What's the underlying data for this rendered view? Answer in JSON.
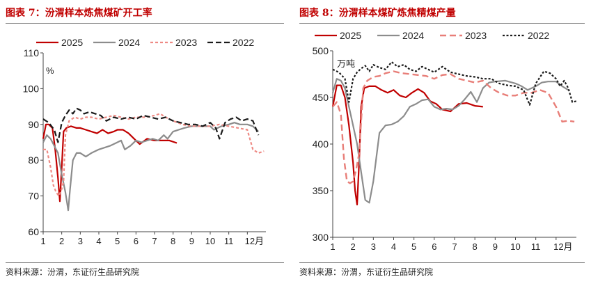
{
  "left": {
    "title": "图表 7：汾渭样本炼焦煤矿开工率",
    "source": "资料来源：汾渭，东证衍生品研究院"
  },
  "right": {
    "title": "图表 8：汾渭样本煤矿炼焦精煤产量",
    "source": "资料来源：汾渭，东证衍生品研究院"
  },
  "chart_data": [
    {
      "type": "line",
      "unit": "%",
      "ylim": [
        60,
        110
      ],
      "yticks": [
        60,
        70,
        80,
        90,
        100,
        110
      ],
      "xlim": [
        1,
        13
      ],
      "xticks": [
        "1",
        "2",
        "3",
        "4",
        "5",
        "6",
        "7",
        "8",
        "9",
        "10",
        "11",
        "12月"
      ],
      "legend_position": "top",
      "series": [
        {
          "name": "2025",
          "color": "#c00000",
          "dash": "solid",
          "width": 2.2,
          "x": [
            1.0,
            1.15,
            1.3,
            1.5,
            1.65,
            1.8,
            1.9,
            2.0,
            2.1,
            2.25,
            2.5,
            2.8,
            3.0,
            3.3,
            3.6,
            3.9,
            4.2,
            4.5,
            4.8,
            5.0,
            5.3,
            5.6,
            5.9,
            6.2,
            6.6,
            7.0,
            7.4,
            7.8,
            8.2
          ],
          "y": [
            86,
            90,
            90,
            89,
            83,
            75,
            68.5,
            78,
            88,
            89,
            89.5,
            89,
            89,
            88.5,
            88,
            87.5,
            88.5,
            87.5,
            88,
            88.5,
            88.5,
            87.5,
            86,
            84.5,
            86,
            85.5,
            85.5,
            85.5,
            84.8
          ]
        },
        {
          "name": "2024",
          "color": "#8c8c8c",
          "dash": "solid",
          "width": 2.2,
          "x": [
            1.0,
            1.2,
            1.4,
            1.6,
            1.8,
            2.0,
            2.2,
            2.35,
            2.45,
            2.6,
            2.8,
            3.0,
            3.3,
            3.6,
            4.0,
            4.3,
            4.6,
            5.0,
            5.2,
            5.4,
            5.7,
            6.0,
            6.3,
            6.6,
            6.9,
            7.2,
            7.5,
            7.7,
            8.0,
            8.3,
            8.6,
            9.0,
            9.5,
            10.0,
            10.2,
            10.6,
            11.0,
            11.3,
            11.6,
            12.0,
            12.3,
            12.6
          ],
          "y": [
            85,
            87,
            86,
            84,
            82,
            76,
            71,
            66,
            72,
            80,
            82,
            82,
            81,
            82,
            83,
            83.5,
            84,
            85,
            85.5,
            83,
            84,
            85.5,
            85,
            85.5,
            86,
            85.5,
            87,
            86,
            88,
            88.5,
            89,
            89.5,
            89.5,
            89.5,
            88.5,
            89.5,
            90,
            90.5,
            90,
            90,
            89.5,
            88
          ]
        },
        {
          "name": "2023",
          "color": "#ee8a84",
          "dash": "4,3",
          "width": 2.2,
          "x": [
            1.0,
            1.2,
            1.4,
            1.55,
            1.7,
            1.85,
            2.0,
            2.1,
            2.2,
            2.4,
            2.7,
            3.0,
            3.3,
            3.6,
            4.0,
            4.4,
            4.8,
            5.2,
            5.6,
            6.0,
            6.5,
            7.0,
            7.3,
            7.6,
            8.0,
            8.5,
            9.0,
            9.5,
            10.0,
            10.5,
            11.0,
            11.5,
            12.0,
            12.3,
            12.6,
            12.9
          ],
          "y": [
            83,
            83,
            78,
            73,
            71,
            70,
            72,
            74,
            87,
            91,
            92,
            91.5,
            92,
            92,
            91.5,
            92,
            92.5,
            92,
            91.5,
            92,
            92,
            92.5,
            93,
            92,
            91,
            90,
            89.5,
            89.5,
            89.5,
            90,
            89.5,
            89,
            88.5,
            83,
            82,
            82.5
          ]
        },
        {
          "name": "2022",
          "color": "#1a1a1a",
          "dash": "8,4",
          "width": 2.2,
          "x": [
            1.0,
            1.3,
            1.6,
            1.8,
            2.0,
            2.2,
            2.4,
            2.6,
            2.8,
            3.0,
            3.2,
            3.5,
            3.8,
            4.1,
            4.4,
            4.8,
            5.2,
            5.6,
            6.0,
            6.4,
            6.8,
            7.2,
            7.6,
            8.0,
            8.4,
            8.8,
            9.2,
            9.6,
            10.0,
            10.3,
            10.5,
            10.8,
            11.1,
            11.4,
            11.7,
            12.0,
            12.3,
            12.6
          ],
          "y": [
            91.5,
            90.5,
            88.5,
            85,
            90.5,
            92.5,
            94,
            93,
            94.5,
            94,
            93,
            93.5,
            93,
            92.5,
            91,
            92,
            91.5,
            92,
            91.5,
            92.5,
            92,
            91.5,
            92,
            91,
            90.5,
            90,
            90,
            89.5,
            90.5,
            89,
            86,
            90.5,
            91.5,
            92,
            91,
            91.5,
            91,
            87
          ]
        }
      ]
    },
    {
      "type": "line",
      "unit": "万吨",
      "ylim": [
        300,
        500
      ],
      "yticks": [
        300,
        350,
        400,
        450,
        500
      ],
      "xlim": [
        1,
        13
      ],
      "xticks": [
        "1",
        "2",
        "3",
        "4",
        "5",
        "6",
        "7",
        "8",
        "9",
        "10",
        "11",
        "12月"
      ],
      "legend_position": "top",
      "series": [
        {
          "name": "2025",
          "color": "#c00000",
          "dash": "solid",
          "width": 2.2,
          "x": [
            1.0,
            1.2,
            1.4,
            1.6,
            1.8,
            2.0,
            2.1,
            2.2,
            2.3,
            2.4,
            2.55,
            2.8,
            3.1,
            3.4,
            3.7,
            4.0,
            4.3,
            4.6,
            4.9,
            5.2,
            5.5,
            5.8,
            6.1,
            6.4,
            6.8,
            7.2,
            7.6,
            8.0,
            8.4
          ],
          "y": [
            440,
            463,
            463,
            450,
            420,
            380,
            350,
            335,
            380,
            440,
            460,
            462,
            462,
            458,
            455,
            458,
            452,
            450,
            455,
            459,
            455,
            446,
            443,
            437,
            435,
            443,
            444,
            441,
            440
          ]
        },
        {
          "name": "2024",
          "color": "#8c8c8c",
          "dash": "solid",
          "width": 2.2,
          "x": [
            1.0,
            1.2,
            1.4,
            1.6,
            1.8,
            2.0,
            2.2,
            2.4,
            2.6,
            2.8,
            3.0,
            3.3,
            3.6,
            3.9,
            4.2,
            4.5,
            4.8,
            5.1,
            5.4,
            5.7,
            6.0,
            6.3,
            6.6,
            6.9,
            7.2,
            7.5,
            7.8,
            8.1,
            8.4,
            8.7,
            9.0,
            9.5,
            10.0,
            10.3,
            10.6,
            11.0,
            11.3,
            11.6,
            12.0,
            12.3,
            12.6
          ],
          "y": [
            455,
            470,
            468,
            460,
            440,
            420,
            400,
            370,
            340,
            337,
            360,
            412,
            420,
            421,
            424,
            430,
            440,
            443,
            447,
            448,
            440,
            437,
            438,
            437,
            441,
            448,
            456,
            445,
            460,
            466,
            467,
            468,
            465,
            462,
            458,
            462,
            466,
            467,
            467,
            462,
            458
          ]
        },
        {
          "name": "2023",
          "color": "#e87e78",
          "dash": "9,5",
          "width": 2.4,
          "x": [
            1.0,
            1.2,
            1.4,
            1.55,
            1.7,
            1.85,
            2.0,
            2.15,
            2.3,
            2.5,
            2.7,
            3.0,
            3.3,
            3.6,
            4.0,
            4.4,
            4.8,
            5.2,
            5.6,
            6.0,
            6.4,
            6.8,
            7.2,
            7.6,
            8.0,
            8.4,
            8.8,
            9.2,
            9.6,
            10.0,
            10.4,
            10.8,
            11.2,
            11.6,
            12.0,
            12.3,
            12.6,
            12.9
          ],
          "y": [
            440,
            445,
            432,
            385,
            360,
            358,
            360,
            372,
            390,
            460,
            468,
            472,
            473,
            476,
            478,
            476,
            475,
            474,
            473,
            470,
            474,
            475,
            470,
            468,
            466,
            468,
            460,
            455,
            452,
            452,
            455,
            455,
            458,
            455,
            440,
            424,
            425,
            424
          ]
        },
        {
          "name": "2022",
          "color": "#1a1a1a",
          "dash": "3,2.5",
          "width": 2.2,
          "x": [
            1.0,
            1.3,
            1.6,
            1.8,
            2.0,
            2.2,
            2.4,
            2.6,
            2.8,
            3.0,
            3.3,
            3.6,
            3.9,
            4.2,
            4.5,
            4.8,
            5.1,
            5.4,
            5.7,
            6.0,
            6.4,
            6.8,
            7.2,
            7.6,
            8.0,
            8.4,
            8.8,
            9.2,
            9.6,
            10.0,
            10.4,
            10.7,
            11.0,
            11.4,
            11.7,
            12.0,
            12.2,
            12.4,
            12.6,
            12.8,
            13.0
          ],
          "y": [
            480,
            477,
            470,
            445,
            470,
            477,
            481,
            484,
            478,
            485,
            482,
            480,
            488,
            483,
            485,
            480,
            478,
            483,
            480,
            477,
            483,
            477,
            475,
            473,
            472,
            470,
            470,
            465,
            463,
            462,
            458,
            442,
            465,
            478,
            476,
            470,
            462,
            468,
            460,
            445,
            446
          ]
        }
      ]
    }
  ]
}
